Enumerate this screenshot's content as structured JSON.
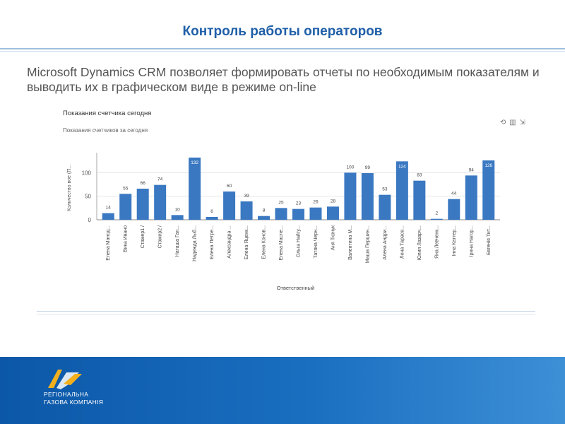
{
  "header": {
    "title": "Контроль работы операторов"
  },
  "intro": {
    "text": "Microsoft Dynamics CRM позволяет формировать отчеты по необходимым показателям и выводить их в графическом виде в режиме on-line"
  },
  "chart_panel": {
    "title": "Показания счетчика сегодня",
    "subtitle": "Показания счетчиков за сегодня",
    "tools": "⟲ ▥ ⇲"
  },
  "chart_data": {
    "type": "bar",
    "title": "Показания счетчика сегодня",
    "xlabel": "Ответственный",
    "ylabel": "Количество вое (П...",
    "ylim": [
      0,
      135
    ],
    "yticks": [
      0,
      50,
      100
    ],
    "categories": [
      "Елена Манод...",
      "Вика Ивано",
      "Стажер1 /",
      "Стажер2 /",
      "Наташа Ган...",
      "Надежда Лыб...",
      "Елена Петре...",
      "Александра ...",
      "Елена Яценк...",
      "Елена Конов...",
      "Елена Масле...",
      "Ольга Найгу...",
      "Татяна Черн...",
      "Аня Ткачук",
      "Валентина М...",
      "Маша Першин...",
      "Алена Андри...",
      "Лена Тарасе...",
      "Юлия Лазарч...",
      "Яна Левченк...",
      "Інна Каттер...",
      "Ірина Нагор...",
      "Евгенія Тит..."
    ],
    "values": [
      14,
      55,
      66,
      74,
      10,
      132,
      6,
      60,
      39,
      8,
      25,
      23,
      26,
      28,
      100,
      99,
      53,
      124,
      83,
      2,
      44,
      94,
      126
    ],
    "color": "#3a78c2"
  },
  "footer": {
    "company_line1": "РЕГІОНАЛЬНА",
    "company_line2": "ГАЗОВА КОМПАНІЯ",
    "bg": "#0c57a8"
  }
}
